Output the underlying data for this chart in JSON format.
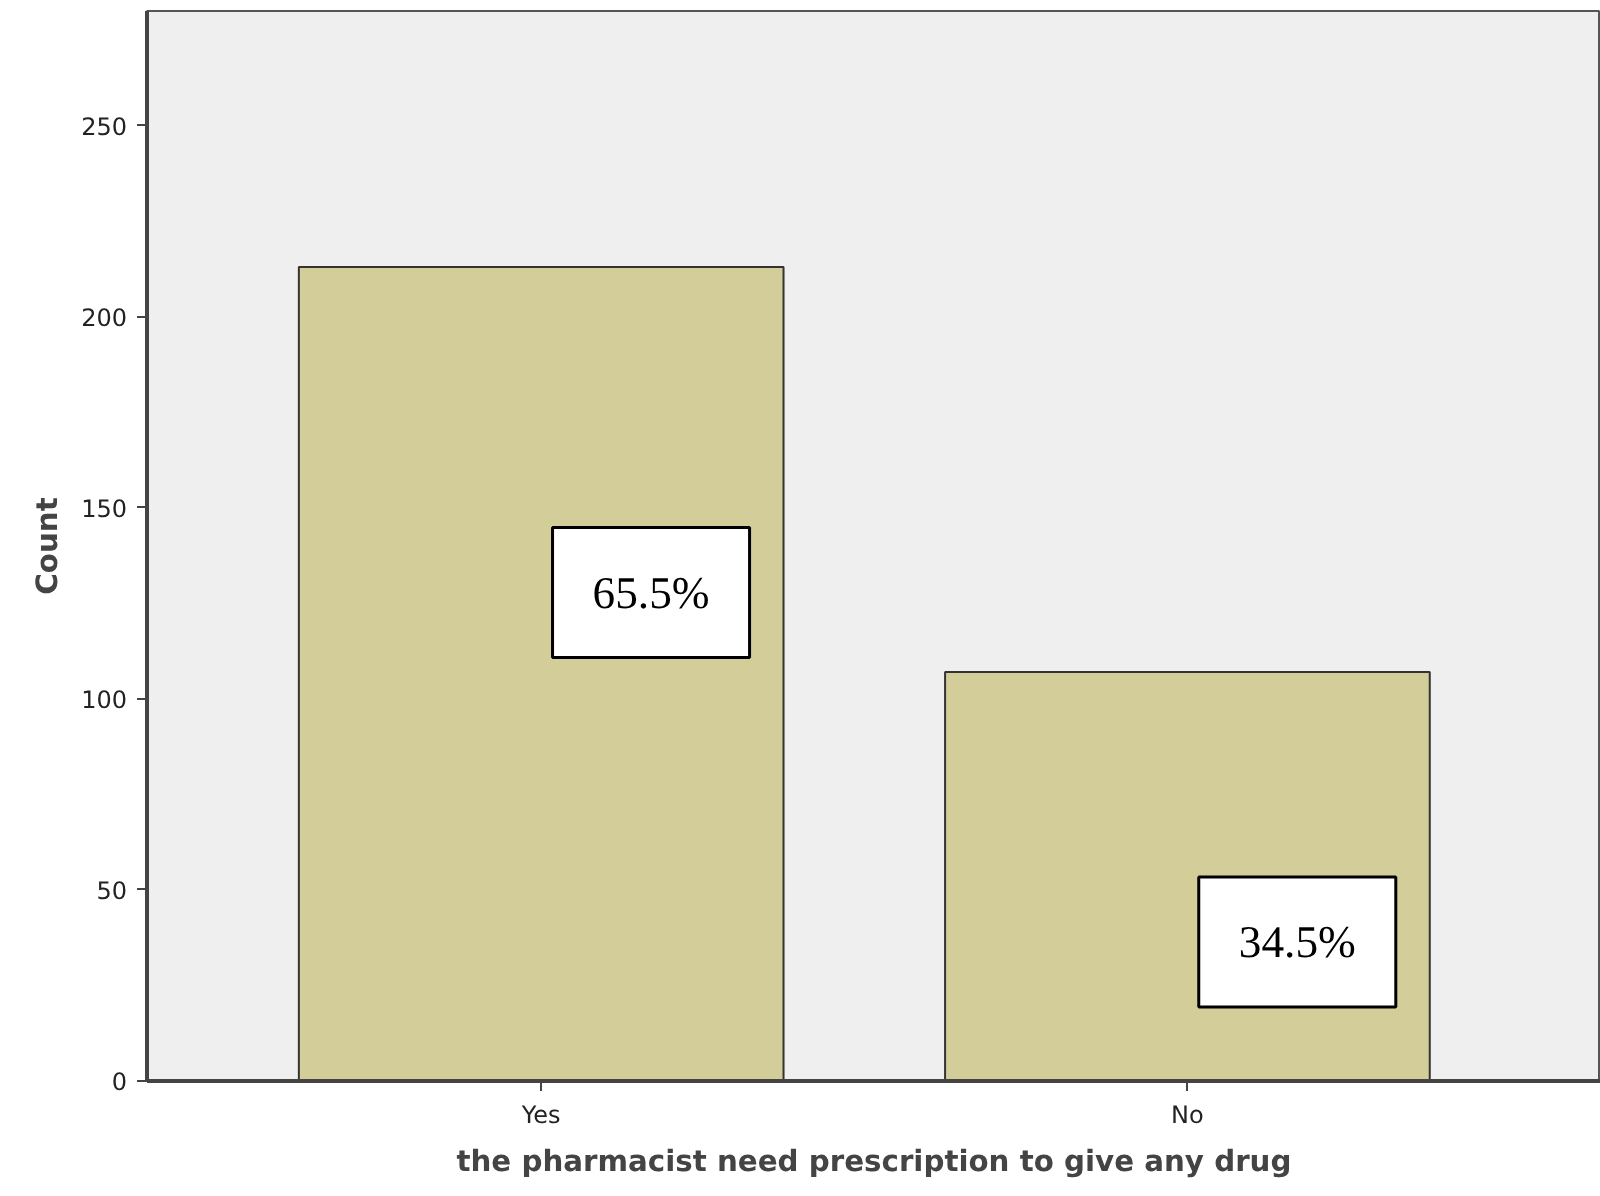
{
  "chart_data": {
    "type": "bar",
    "xlabel": "the pharmacist need prescription to give any drug",
    "ylabel": "Count",
    "categories": [
      "Yes",
      "No"
    ],
    "values": [
      213,
      107
    ],
    "color": "#d3ce99",
    "annotations": [
      "65.5%",
      "34.5%"
    ],
    "ylim": [
      0,
      280
    ],
    "yticks": [
      0,
      50,
      100,
      150,
      200,
      250
    ],
    "grid": false
  }
}
